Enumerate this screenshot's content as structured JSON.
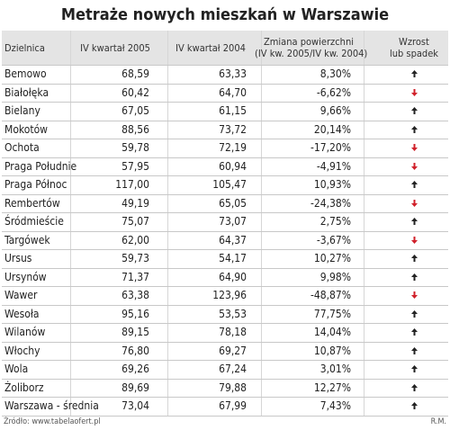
{
  "header": {
    "title": "Metraże nowych mieszkań w Warszawie"
  },
  "table": {
    "columns": [
      [
        "Dzielnica"
      ],
      [
        "IV kwartał 2005"
      ],
      [
        "IV kwartał 2004"
      ],
      [
        "Zmiana powierzchni",
        "(IV kw. 2005/IV kw. 2004)"
      ],
      [
        "Wzrost",
        "lub spadek"
      ]
    ],
    "rows": [
      [
        "Bemowo",
        "68,59",
        "63,33",
        "8,30%"
      ],
      [
        "Białołęka",
        "60,42",
        "64,70",
        "-6,62%"
      ],
      [
        "Bielany",
        "67,05",
        "61,15",
        "9,66%"
      ],
      [
        "Mokotów",
        "88,56",
        "73,72",
        "20,14%"
      ],
      [
        "Ochota",
        "59,78",
        "72,19",
        "-17,20%"
      ],
      [
        "Praga Południe",
        "57,95",
        "60,94",
        "-4,91%"
      ],
      [
        "Praga Północ",
        "117,00",
        "105,47",
        "10,93%"
      ],
      [
        "Rembertów",
        "49,19",
        "65,05",
        "-24,38%"
      ],
      [
        "Śródmieście",
        "75,07",
        "73,07",
        "2,75%"
      ],
      [
        "Targówek",
        "62,00",
        "64,37",
        "-3,67%"
      ],
      [
        "Ursus",
        "59,73",
        "54,17",
        "10,27%"
      ],
      [
        "Ursynów",
        "71,37",
        "64,90",
        "9,98%"
      ],
      [
        "Wawer",
        "63,38",
        "123,96",
        "-48,87%"
      ],
      [
        "Wesoła",
        "95,16",
        "53,53",
        "77,75%"
      ],
      [
        "Wilanów",
        "89,15",
        "78,18",
        "14,04%"
      ],
      [
        "Włochy",
        "76,80",
        "69,27",
        "10,87%"
      ],
      [
        "Wola",
        "69,26",
        "67,24",
        "3,01%"
      ],
      [
        "Żoliborz",
        "89,69",
        "79,88",
        "12,27%"
      ],
      [
        "Warszawa - średnia",
        "73,04",
        "67,99",
        "7,43%"
      ]
    ],
    "trend": [
      "up",
      "down",
      "up",
      "up",
      "down",
      "down",
      "up",
      "down",
      "up",
      "down",
      "up",
      "up",
      "down",
      "up",
      "up",
      "up",
      "up",
      "up",
      "up"
    ]
  },
  "footer": {
    "source": "Źródło: www.tabelaofert.pl",
    "author": "R.M."
  }
}
